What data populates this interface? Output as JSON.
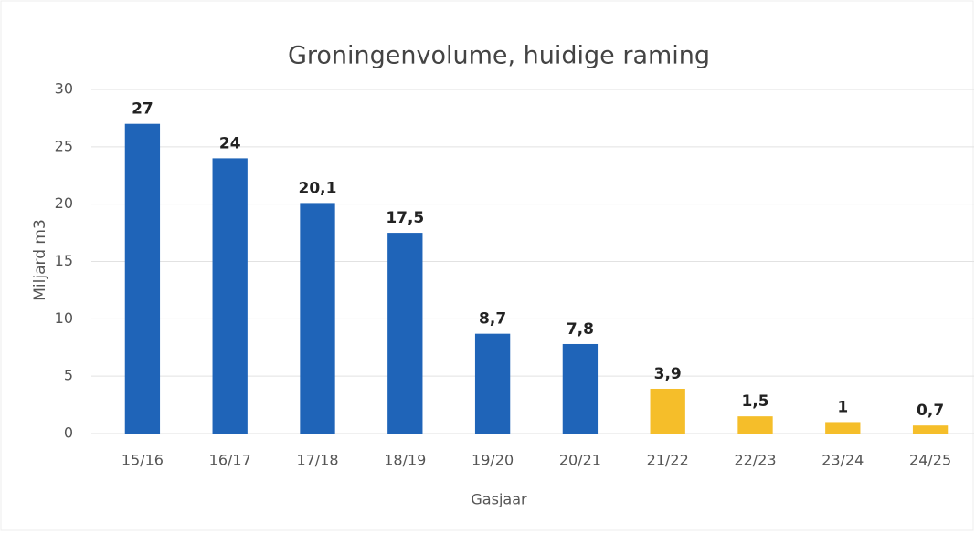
{
  "chart_data": {
    "type": "bar",
    "title": "Groningenvolume, huidige raming",
    "xlabel": "Gasjaar",
    "ylabel": "Miljard m3",
    "categories": [
      "15/16",
      "16/17",
      "17/18",
      "18/19",
      "19/20",
      "20/21",
      "21/22",
      "22/23",
      "23/24",
      "24/25"
    ],
    "values": [
      27,
      24,
      20.1,
      17.5,
      8.7,
      7.8,
      3.9,
      1.5,
      1,
      0.7
    ],
    "value_labels": [
      "27",
      "24",
      "20,1",
      "17,5",
      "8,7",
      "7,8",
      "3,9",
      "1,5",
      "1",
      "0,7"
    ],
    "colors": [
      "#1f64b8",
      "#1f64b8",
      "#1f64b8",
      "#1f64b8",
      "#1f64b8",
      "#1f64b8",
      "#f5be2a",
      "#f5be2a",
      "#f5be2a",
      "#f5be2a"
    ],
    "ylim": [
      0,
      30
    ],
    "yticks": [
      0,
      5,
      10,
      15,
      20,
      25,
      30
    ],
    "grid": true
  }
}
